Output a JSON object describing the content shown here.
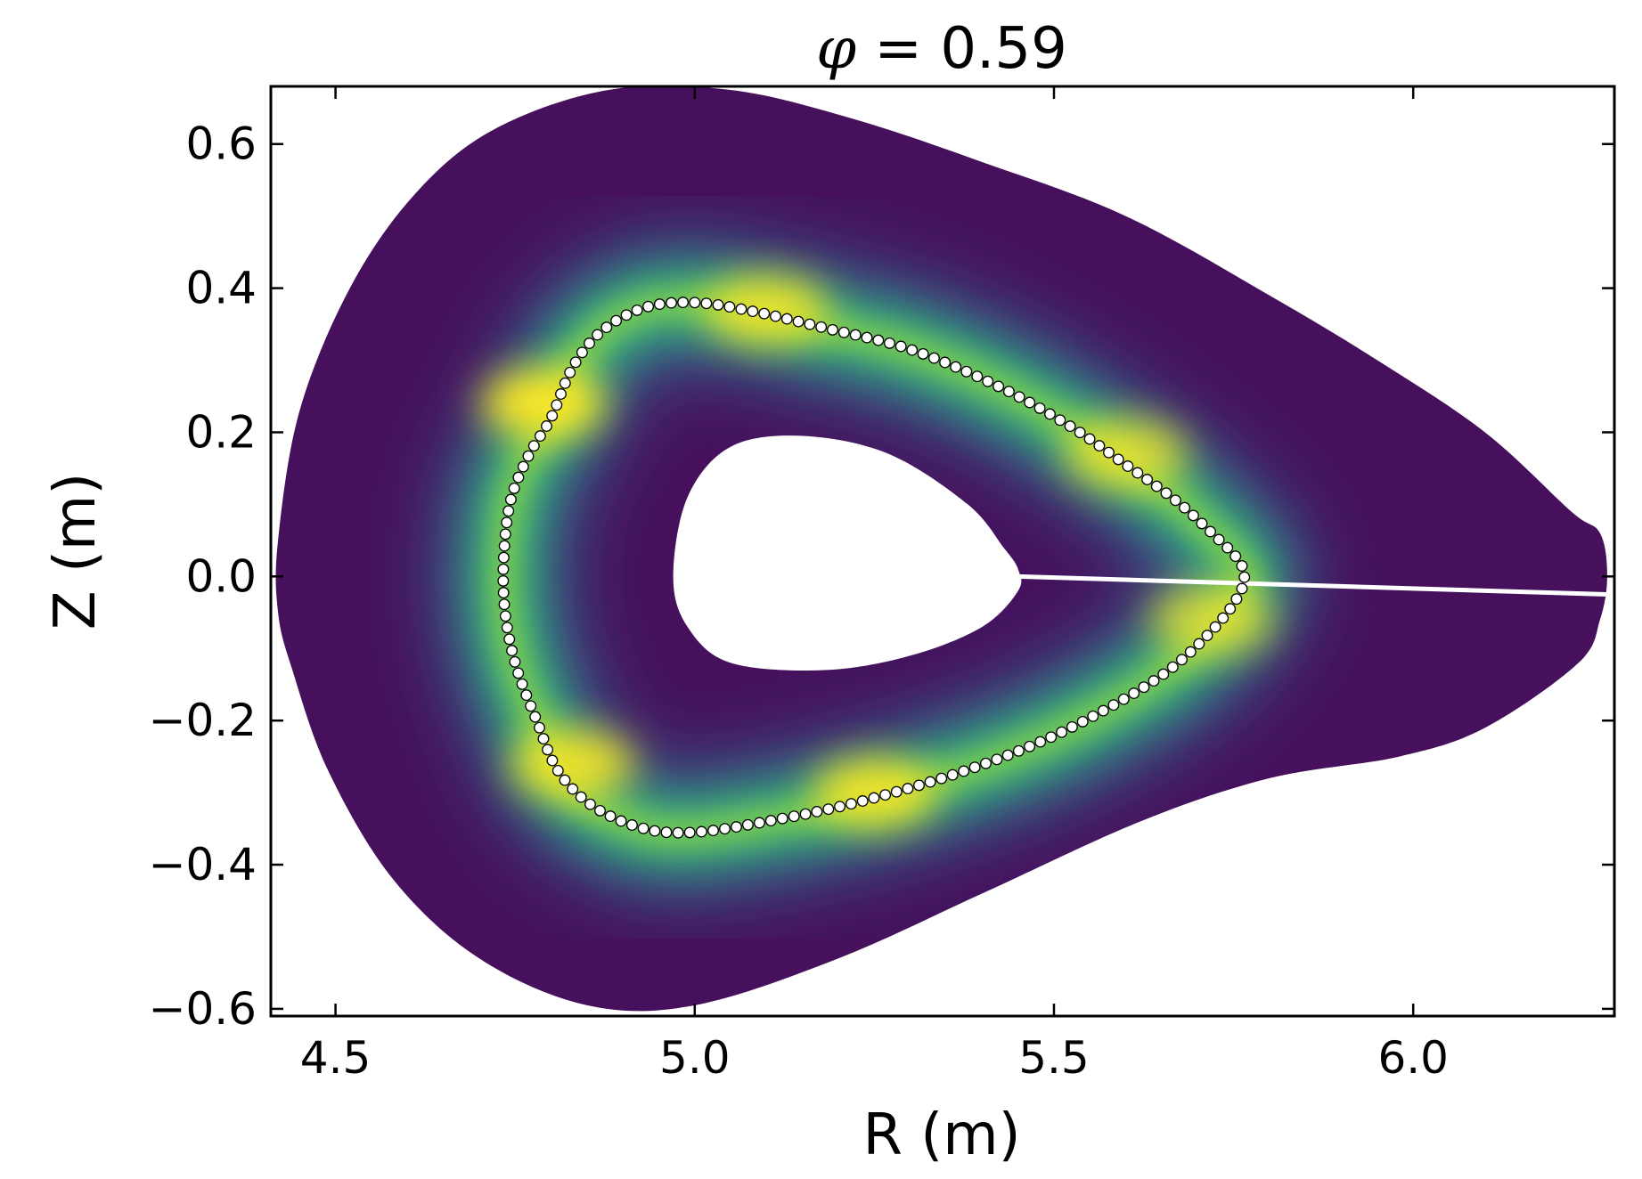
{
  "chart_data": {
    "type": "heatmap",
    "title": {
      "symbol": "φ",
      "rest": " = 0.59"
    },
    "xlabel": "R (m)",
    "ylabel": "Z (m)",
    "xlim": [
      4.41,
      6.28
    ],
    "ylim": [
      -0.61,
      0.68
    ],
    "xticks": [
      4.5,
      5.0,
      5.5,
      6.0
    ],
    "xtick_labels": [
      "4.5",
      "5.0",
      "5.5",
      "6.0"
    ],
    "yticks": [
      -0.6,
      -0.4,
      -0.2,
      0.0,
      0.2,
      0.4,
      0.6
    ],
    "ytick_labels": [
      "−0.6",
      "−0.4",
      "−0.2",
      "0.0",
      "0.2",
      "0.4",
      "0.6"
    ],
    "grid": false,
    "colormap": [
      "#440154",
      "#31688e",
      "#35b779",
      "#fde725"
    ],
    "background_color": "#46105d",
    "outer_boundary": [
      [
        4.42,
        0.05
      ],
      [
        4.45,
        0.23
      ],
      [
        4.52,
        0.4
      ],
      [
        4.61,
        0.53
      ],
      [
        4.72,
        0.62
      ],
      [
        4.88,
        0.675
      ],
      [
        5.05,
        0.675
      ],
      [
        5.22,
        0.635
      ],
      [
        5.4,
        0.575
      ],
      [
        5.6,
        0.5
      ],
      [
        5.8,
        0.39
      ],
      [
        5.95,
        0.3
      ],
      [
        6.1,
        0.2
      ],
      [
        6.22,
        0.09
      ],
      [
        6.26,
        0.06
      ],
      [
        6.27,
        0.0
      ],
      [
        6.26,
        -0.06
      ],
      [
        6.23,
        -0.12
      ],
      [
        6.1,
        -0.21
      ],
      [
        5.98,
        -0.25
      ],
      [
        5.8,
        -0.28
      ],
      [
        5.62,
        -0.34
      ],
      [
        5.4,
        -0.44
      ],
      [
        5.2,
        -0.53
      ],
      [
        5.0,
        -0.595
      ],
      [
        4.85,
        -0.595
      ],
      [
        4.7,
        -0.53
      ],
      [
        4.58,
        -0.42
      ],
      [
        4.49,
        -0.27
      ],
      [
        4.44,
        -0.13
      ],
      [
        4.42,
        -0.05
      ]
    ],
    "inner_hole": [
      [
        4.97,
        0.0
      ],
      [
        4.99,
        0.11
      ],
      [
        5.05,
        0.18
      ],
      [
        5.15,
        0.195
      ],
      [
        5.27,
        0.17
      ],
      [
        5.38,
        0.1
      ],
      [
        5.43,
        0.04
      ],
      [
        5.45,
        0.01
      ],
      [
        5.45,
        -0.02
      ],
      [
        5.4,
        -0.07
      ],
      [
        5.3,
        -0.11
      ],
      [
        5.18,
        -0.13
      ],
      [
        5.05,
        -0.12
      ],
      [
        4.99,
        -0.07
      ]
    ],
    "slit": {
      "r_start": 5.45,
      "r_end": 6.27,
      "z_start": 0.0,
      "z_end": -0.025
    },
    "ridge_curve": [
      [
        5.0,
        0.38
      ],
      [
        5.08,
        0.368
      ],
      [
        5.18,
        0.345
      ],
      [
        5.3,
        0.315
      ],
      [
        5.42,
        0.265
      ],
      [
        5.52,
        0.21
      ],
      [
        5.6,
        0.155
      ],
      [
        5.67,
        0.105
      ],
      [
        5.72,
        0.06
      ],
      [
        5.755,
        0.025
      ],
      [
        5.765,
        0.0
      ],
      [
        5.755,
        -0.03
      ],
      [
        5.72,
        -0.075
      ],
      [
        5.66,
        -0.13
      ],
      [
        5.58,
        -0.18
      ],
      [
        5.48,
        -0.23
      ],
      [
        5.36,
        -0.275
      ],
      [
        5.22,
        -0.315
      ],
      [
        5.1,
        -0.34
      ],
      [
        5.0,
        -0.355
      ],
      [
        4.93,
        -0.35
      ],
      [
        4.86,
        -0.32
      ],
      [
        4.81,
        -0.27
      ],
      [
        4.78,
        -0.2
      ],
      [
        4.75,
        -0.12
      ],
      [
        4.735,
        -0.04
      ],
      [
        4.735,
        0.04
      ],
      [
        4.745,
        0.11
      ],
      [
        4.77,
        0.17
      ],
      [
        4.8,
        0.22
      ],
      [
        4.83,
        0.29
      ],
      [
        4.87,
        0.34
      ],
      [
        4.93,
        0.373
      ],
      [
        5.0,
        0.38
      ]
    ],
    "hotspots": [
      {
        "r": 4.79,
        "z": 0.24,
        "intensity": 1.0
      },
      {
        "r": 5.1,
        "z": 0.37,
        "intensity": 0.85
      },
      {
        "r": 5.6,
        "z": 0.17,
        "intensity": 0.8
      },
      {
        "r": 5.72,
        "z": -0.06,
        "intensity": 0.75
      },
      {
        "r": 4.83,
        "z": -0.26,
        "intensity": 0.9
      },
      {
        "r": 5.25,
        "z": -0.3,
        "intensity": 0.9
      }
    ],
    "marker_style": {
      "fill": "#ffffff",
      "stroke": "#000000"
    }
  }
}
